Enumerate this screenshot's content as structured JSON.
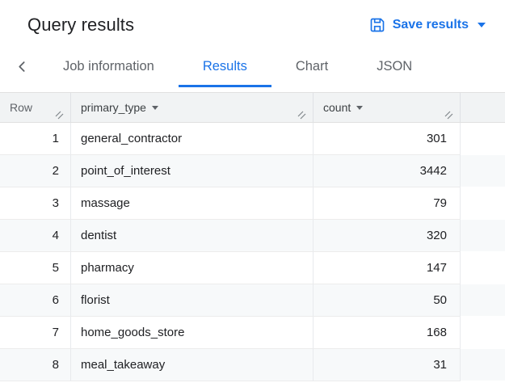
{
  "colors": {
    "accent": "#1a73e8",
    "header_bg": "#f1f3f4",
    "alt_row_bg": "#f7f9fa"
  },
  "header": {
    "title": "Query results",
    "save_button_label": "Save results"
  },
  "tabs": {
    "active": "Results",
    "items": [
      {
        "label": "Job information"
      },
      {
        "label": "Results"
      },
      {
        "label": "Chart"
      },
      {
        "label": "JSON"
      }
    ]
  },
  "table": {
    "columns": [
      {
        "label": "Row"
      },
      {
        "label": "primary_type"
      },
      {
        "label": "count"
      }
    ],
    "rows": [
      {
        "row": "1",
        "primary_type": "general_contractor",
        "count": "301"
      },
      {
        "row": "2",
        "primary_type": "point_of_interest",
        "count": "3442"
      },
      {
        "row": "3",
        "primary_type": "massage",
        "count": "79"
      },
      {
        "row": "4",
        "primary_type": "dentist",
        "count": "320"
      },
      {
        "row": "5",
        "primary_type": "pharmacy",
        "count": "147"
      },
      {
        "row": "6",
        "primary_type": "florist",
        "count": "50"
      },
      {
        "row": "7",
        "primary_type": "home_goods_store",
        "count": "168"
      },
      {
        "row": "8",
        "primary_type": "meal_takeaway",
        "count": "31"
      }
    ]
  }
}
